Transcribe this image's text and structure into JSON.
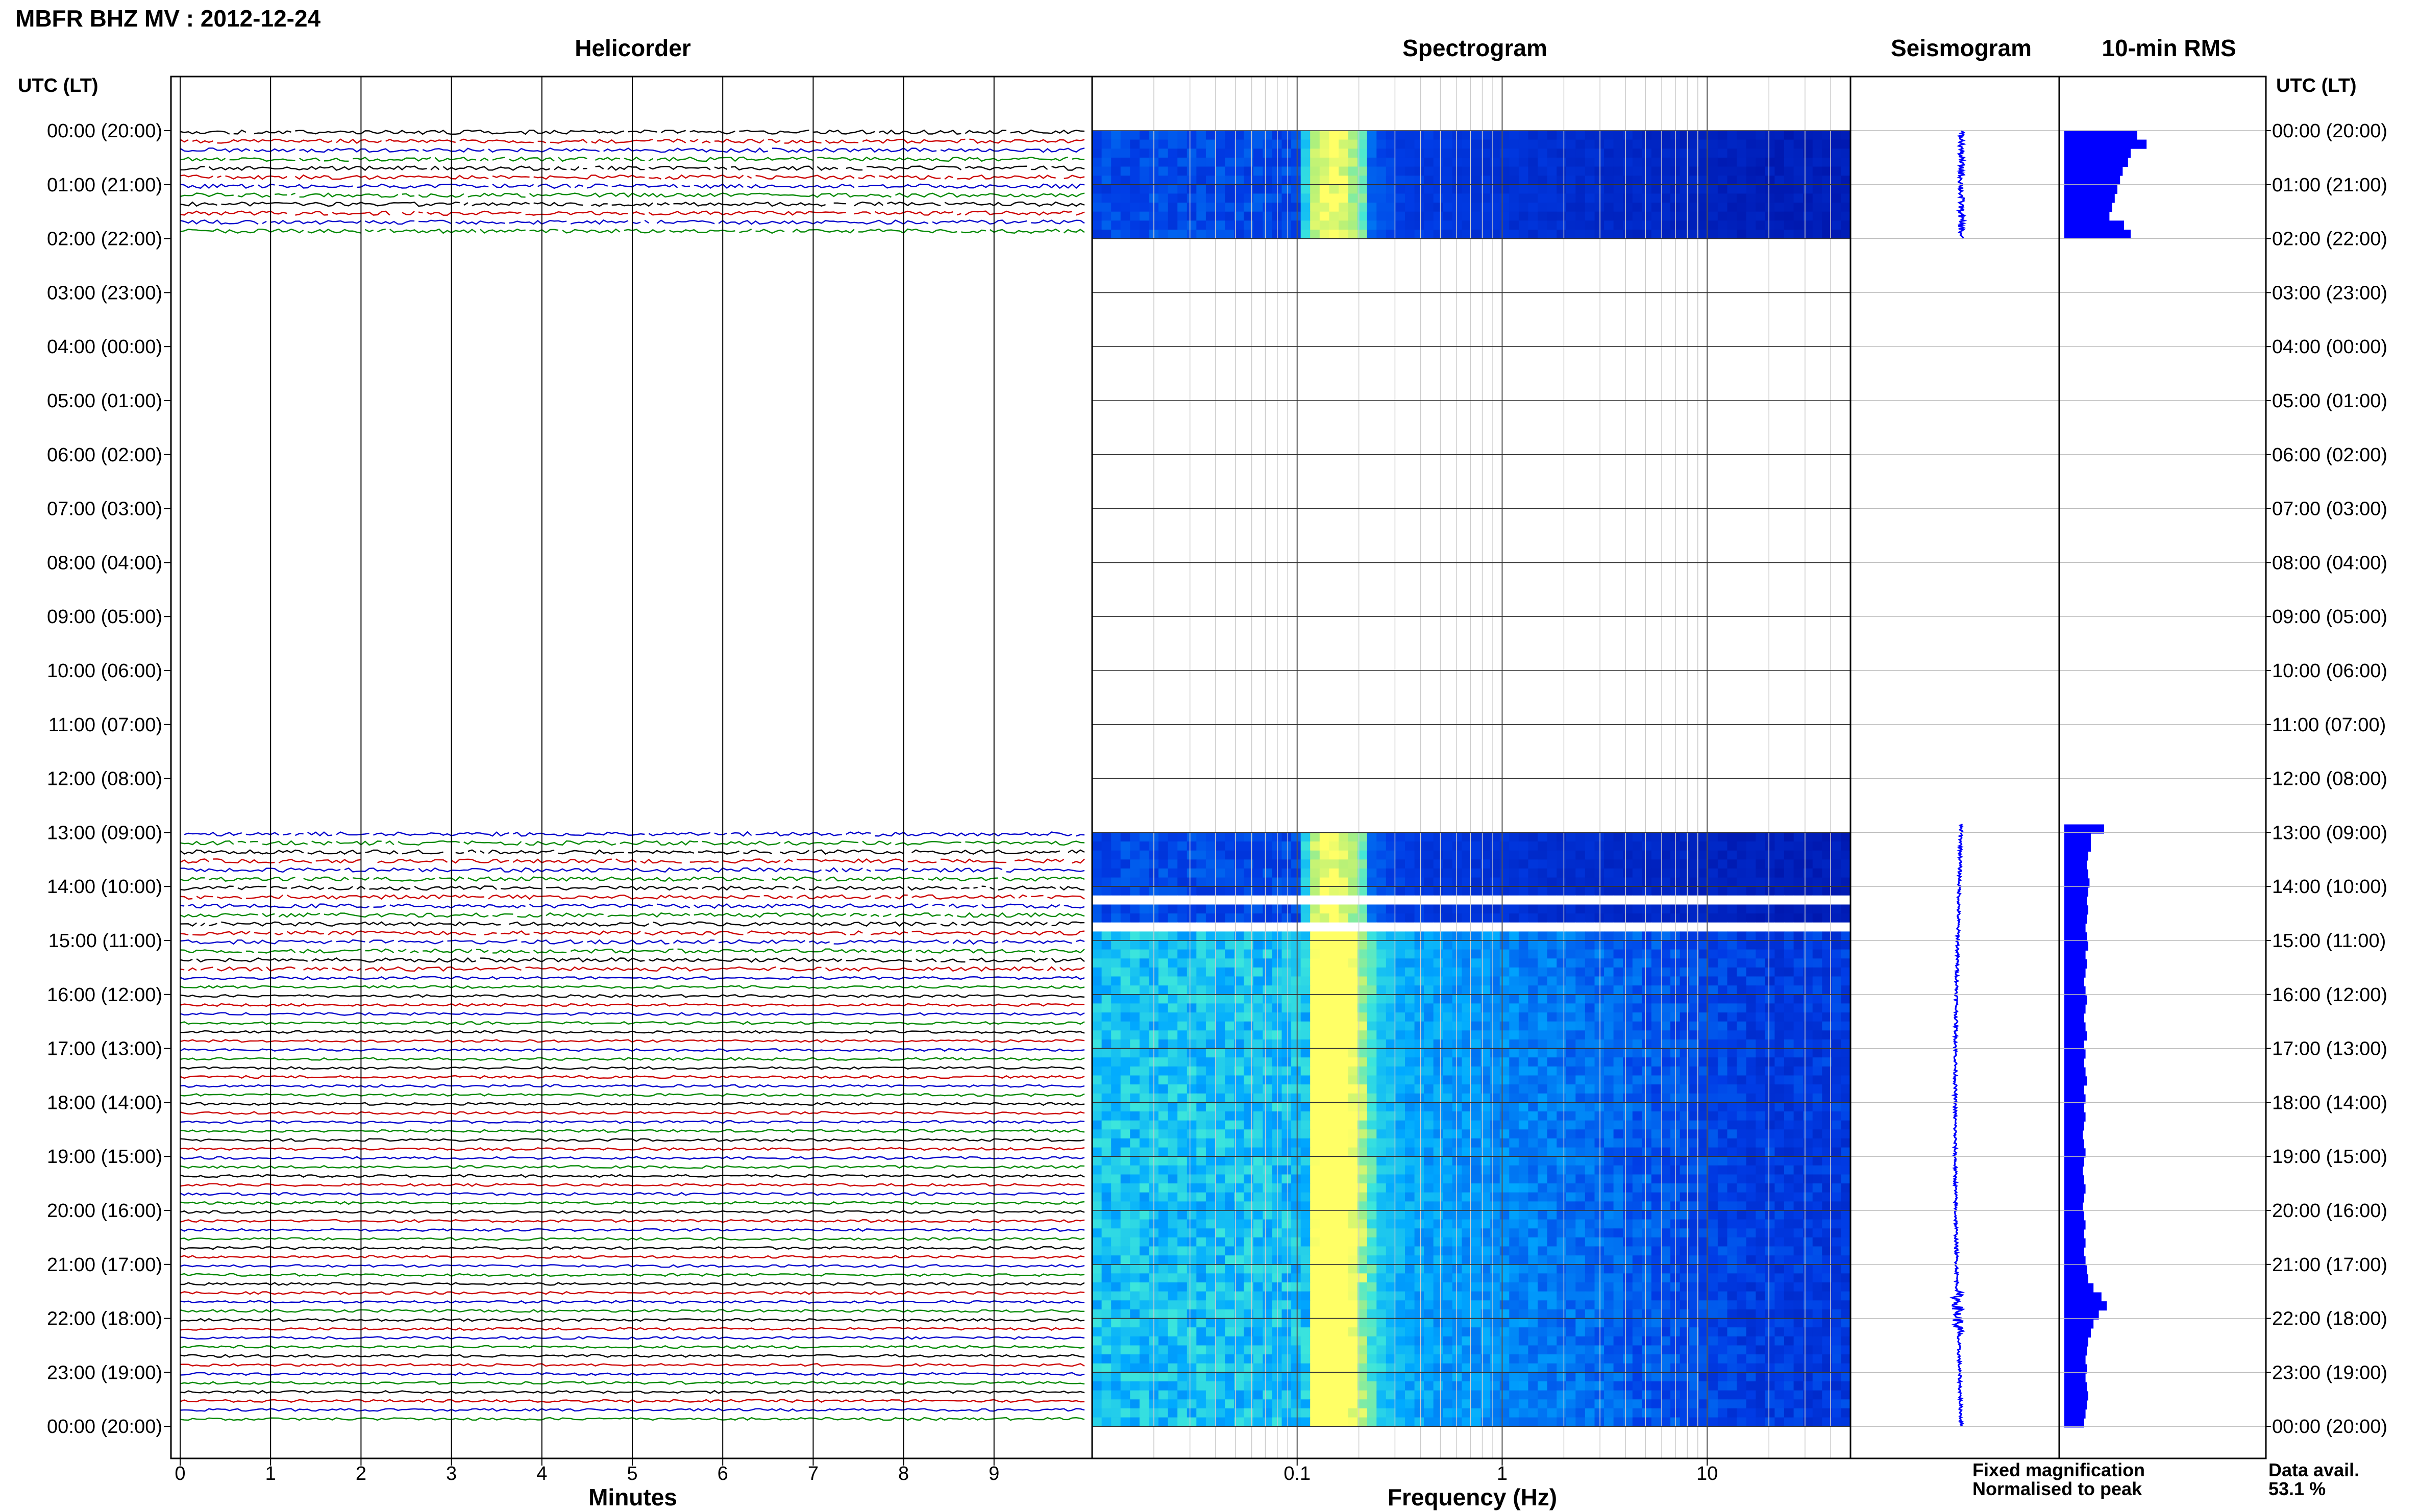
{
  "header": {
    "title": "MBFR BHZ MV : 2012-12-24"
  },
  "panels": {
    "helicorder": "Helicorder",
    "spectrogram": "Spectrogram",
    "seismogram": "Seismogram",
    "rms": "10-min RMS"
  },
  "axes": {
    "left_header": "UTC (LT)",
    "right_header": "UTC (LT)",
    "helicorder_xlabel": "Minutes",
    "spectrogram_xlabel": "Frequency (Hz)"
  },
  "legend": {
    "fixed": "Fixed magnification",
    "normalised": "Normalised to peak",
    "fixed_color": "#0000ff",
    "normalised_color": "#ff0000"
  },
  "data_availability": {
    "label": "Data avail.",
    "value": "53.1 %"
  },
  "colors": {
    "trace_cycle": [
      "#000000",
      "#cc0000",
      "#0000cc",
      "#008800"
    ],
    "spectrogram_low": "#00008b",
    "spectrogram_high": "#ffff66",
    "seismogram": "#0000ff",
    "rms": "#0000ff"
  },
  "chart_data": {
    "type": "heatmap",
    "title": "MBFR BHZ MV : 2012-12-24",
    "hour_labels": [
      "00:00 (20:00)",
      "01:00 (21:00)",
      "02:00 (22:00)",
      "03:00 (23:00)",
      "04:00 (00:00)",
      "05:00 (01:00)",
      "06:00 (02:00)",
      "07:00 (03:00)",
      "08:00 (04:00)",
      "09:00 (05:00)",
      "10:00 (06:00)",
      "11:00 (07:00)",
      "12:00 (08:00)",
      "13:00 (09:00)",
      "14:00 (10:00)",
      "15:00 (11:00)",
      "16:00 (12:00)",
      "17:00 (13:00)",
      "18:00 (14:00)",
      "19:00 (15:00)",
      "20:00 (16:00)",
      "21:00 (17:00)",
      "22:00 (18:00)",
      "23:00 (19:00)",
      "00:00 (20:00)"
    ],
    "helicorder": {
      "xlabel": "Minutes",
      "xticks": [
        0,
        1,
        2,
        3,
        4,
        5,
        6,
        7,
        8,
        9
      ],
      "xlim": [
        0,
        10
      ],
      "data_coverage_hours": [
        [
          0,
          2
        ],
        [
          12.85,
          24
        ]
      ]
    },
    "spectrogram": {
      "xlabel": "Frequency (Hz)",
      "scale": "log",
      "xlim": [
        0.01,
        50
      ],
      "xticks": [
        0.1,
        1,
        10
      ],
      "dominant_frequency_hz": 0.15
    },
    "seismogram": {
      "coverage_hours": [
        [
          0,
          2
        ],
        [
          12.85,
          24
        ]
      ]
    },
    "rms_10min": {
      "units": "relative",
      "segments": [
        {
          "start_hour": 0,
          "values": [
            0.55,
            0.62,
            0.5,
            0.48,
            0.44,
            0.42,
            0.4,
            0.38,
            0.36,
            0.34,
            0.45,
            0.5
          ]
        },
        {
          "start_hour": 12.85,
          "values": [
            0.3,
            0.2,
            0.2,
            0.18,
            0.17,
            0.18,
            0.19,
            0.18,
            0.17,
            0.18,
            0.17,
            0.16,
            0.17,
            0.18,
            0.16,
            0.17,
            0.16,
            0.15,
            0.16,
            0.17,
            0.16,
            0.15,
            0.16,
            0.17,
            0.15,
            0.16,
            0.15,
            0.16,
            0.17,
            0.15,
            0.16,
            0.15,
            0.16,
            0.15,
            0.14,
            0.15,
            0.16,
            0.15,
            0.14,
            0.15,
            0.16,
            0.15,
            0.14,
            0.15,
            0.16,
            0.15,
            0.16,
            0.15,
            0.16,
            0.17,
            0.18,
            0.22,
            0.28,
            0.32,
            0.26,
            0.22,
            0.2,
            0.18,
            0.17,
            0.16,
            0.17,
            0.16,
            0.17,
            0.18,
            0.17,
            0.16,
            0.15
          ]
        }
      ]
    }
  }
}
